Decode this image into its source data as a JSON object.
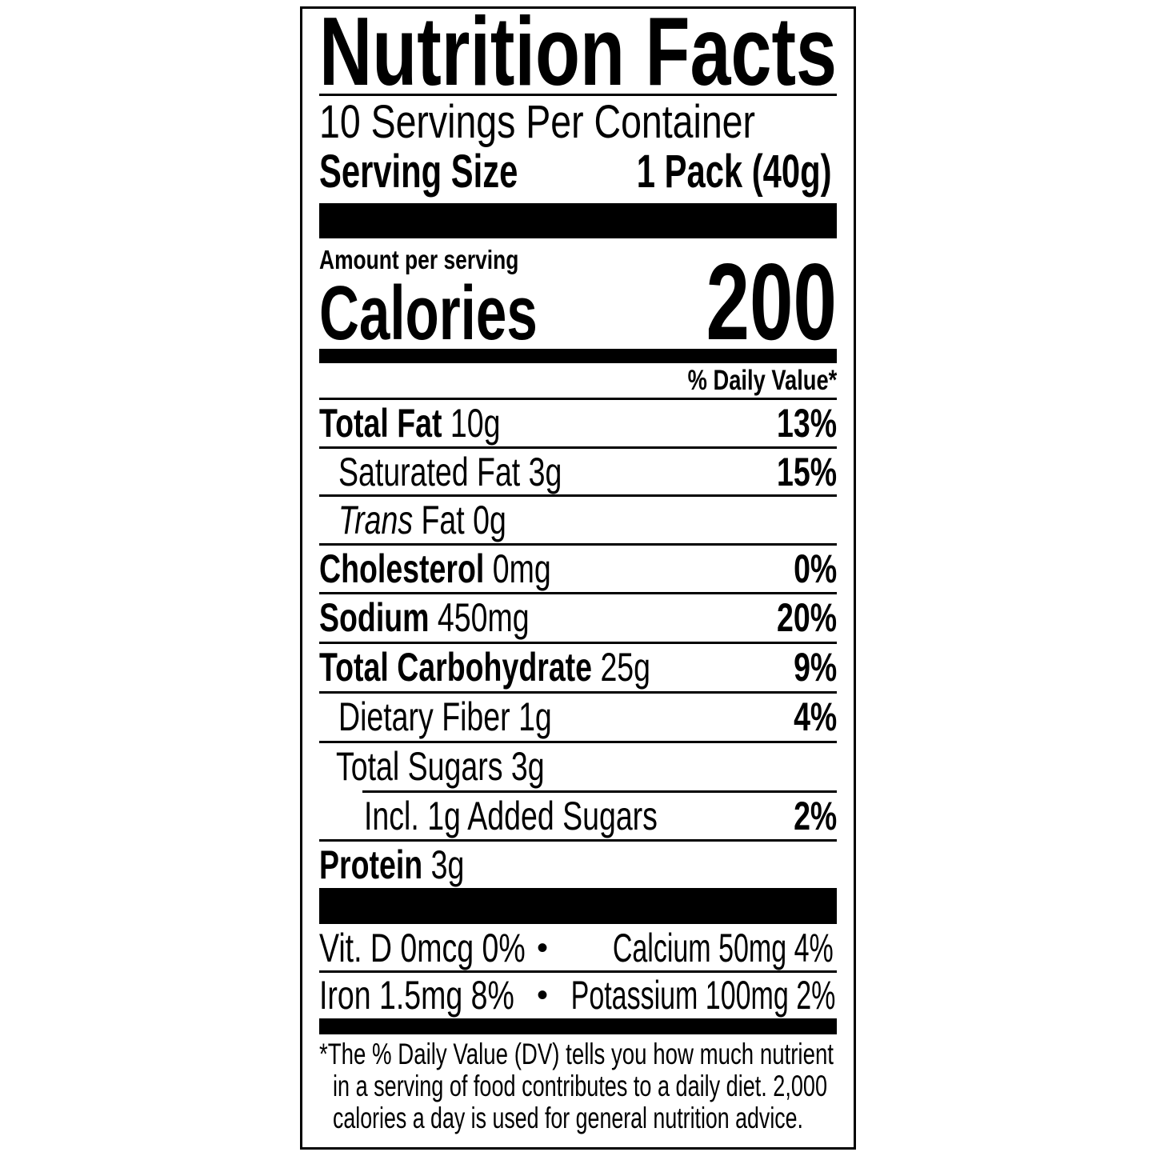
{
  "title": "Nutrition Facts",
  "servings_per_container": "10 Servings Per Container",
  "serving_size": {
    "label": "Serving Size",
    "value": "1 Pack (40g)"
  },
  "amount_per_serving": "Amount per serving",
  "calories": {
    "label": "Calories",
    "value": "200"
  },
  "daily_value_header": "% Daily Value*",
  "nutrients": [
    {
      "name": "Total Fat",
      "amount": "10g",
      "dv": "13%"
    },
    {
      "name": "Saturated Fat",
      "amount": "3g",
      "dv": "15%"
    },
    {
      "name": "Trans",
      "name_suffix": "Fat",
      "amount": "0g",
      "dv": ""
    },
    {
      "name": "Cholesterol",
      "amount": "0mg",
      "dv": "0%"
    },
    {
      "name": "Sodium",
      "amount": "450mg",
      "dv": "20%"
    },
    {
      "name": "Total Carbohydrate",
      "amount": "25g",
      "dv": "9%"
    },
    {
      "name": "Dietary Fiber",
      "amount": "1g",
      "dv": "4%"
    },
    {
      "name": "Total Sugars",
      "amount": "3g",
      "dv": ""
    },
    {
      "name": "Incl. 1g Added Sugars",
      "amount": "",
      "dv": "2%"
    },
    {
      "name": "Protein",
      "amount": "3g",
      "dv": ""
    }
  ],
  "vitamins": [
    {
      "left": "Vit. D 0mcg 0%",
      "right": "Calcium 50mg 4%"
    },
    {
      "left": "Iron 1.5mg 8%",
      "right": "Potassium 100mg 2%"
    }
  ],
  "bullet": "•",
  "footnote": [
    "*The % Daily Value (DV) tells you how much nutrient",
    "in a serving of food contributes to a daily diet. 2,000",
    "calories a day is used for general nutrition advice."
  ]
}
